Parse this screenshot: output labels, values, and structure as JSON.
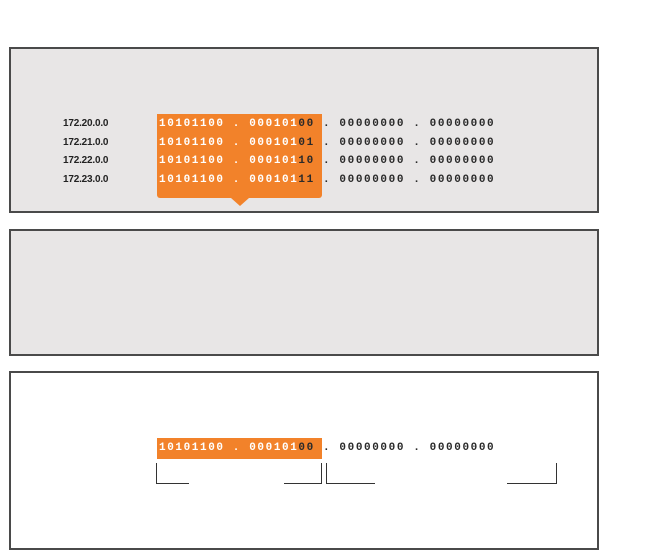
{
  "rows": [
    {
      "ip": "172.20.0.0",
      "high": "10101100 . 000101",
      "rest": "00 . 00000000 . 00000000"
    },
    {
      "ip": "172.21.0.0",
      "high": "10101100 . 000101",
      "rest": "01 . 00000000 . 00000000"
    },
    {
      "ip": "172.22.0.0",
      "high": "10101100 . 000101",
      "rest": "10 . 00000000 . 00000000"
    },
    {
      "ip": "172.23.0.0",
      "high": "10101100 . 000101",
      "rest": "11 . 00000000 . 00000000"
    }
  ],
  "summary": {
    "high": "10101100 . 000101",
    "rest": "00 . 00000000 . 00000000"
  },
  "colors": {
    "highlight": "#f2822a",
    "panel": "#e8e6e6",
    "border": "#4a4a4a"
  }
}
